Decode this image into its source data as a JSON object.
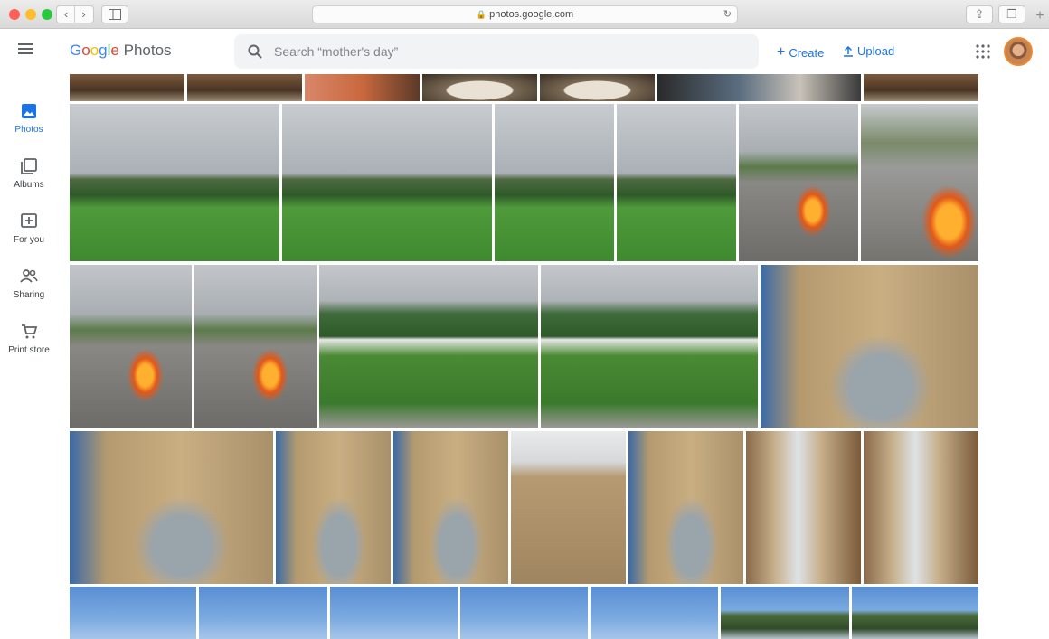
{
  "browser": {
    "url": "photos.google.com",
    "icons": [
      "back-chevron-icon",
      "forward-chevron-icon",
      "sidebar-toggle-icon",
      "lock-icon",
      "reload-icon",
      "share-icon",
      "tabs-icon",
      "new-tab-plus-icon"
    ]
  },
  "header": {
    "menu_icon": "hamburger-menu-icon",
    "logo": {
      "google": "Google",
      "photos": "Photos"
    },
    "search": {
      "placeholder": "Search “mother's day”"
    },
    "create_label": "Create",
    "upload_label": "Upload",
    "apps_icon": "apps-grid-icon"
  },
  "sidebar": {
    "items": [
      {
        "label": "Photos",
        "icon": "photo-icon",
        "active": true
      },
      {
        "label": "Albums",
        "icon": "albums-icon",
        "active": false
      },
      {
        "label": "For you",
        "icon": "for-you-icon",
        "active": false
      },
      {
        "label": "Sharing",
        "icon": "sharing-icon",
        "active": false
      },
      {
        "label": "Print store",
        "icon": "cart-icon",
        "active": false
      }
    ]
  },
  "colors": {
    "accent": "#1a73e8",
    "google_blue": "#4285f4",
    "google_red": "#ea4335",
    "google_yellow": "#fbbc05",
    "google_green": "#34a853"
  },
  "photos": [
    {
      "scene": "dining-table"
    },
    {
      "scene": "dining-table"
    },
    {
      "scene": "orange-chair"
    },
    {
      "scene": "plate"
    },
    {
      "scene": "plate"
    },
    {
      "scene": "dinner-guests"
    },
    {
      "scene": "dining-table"
    },
    {
      "scene": "hillside-lawn"
    },
    {
      "scene": "hillside-lawn"
    },
    {
      "scene": "hillside-lawn"
    },
    {
      "scene": "hillside-lawn"
    },
    {
      "scene": "fire-pit-parking"
    },
    {
      "scene": "fire-pit-classic-car"
    },
    {
      "scene": "fire-pit-parking"
    },
    {
      "scene": "fire-pit-parking"
    },
    {
      "scene": "wedding-lawn"
    },
    {
      "scene": "wedding-lawn"
    },
    {
      "scene": "classic-car-street"
    },
    {
      "scene": "classic-car-street"
    },
    {
      "scene": "classic-car-street"
    },
    {
      "scene": "classic-car-street"
    },
    {
      "scene": "old-building"
    },
    {
      "scene": "classic-car-street"
    },
    {
      "scene": "walking-street"
    },
    {
      "scene": "walking-street"
    },
    {
      "scene": "blue-sky"
    },
    {
      "scene": "blue-sky"
    },
    {
      "scene": "blue-sky"
    },
    {
      "scene": "blue-sky"
    },
    {
      "scene": "blue-sky"
    },
    {
      "scene": "coast-hill"
    },
    {
      "scene": "coast-hill"
    }
  ]
}
